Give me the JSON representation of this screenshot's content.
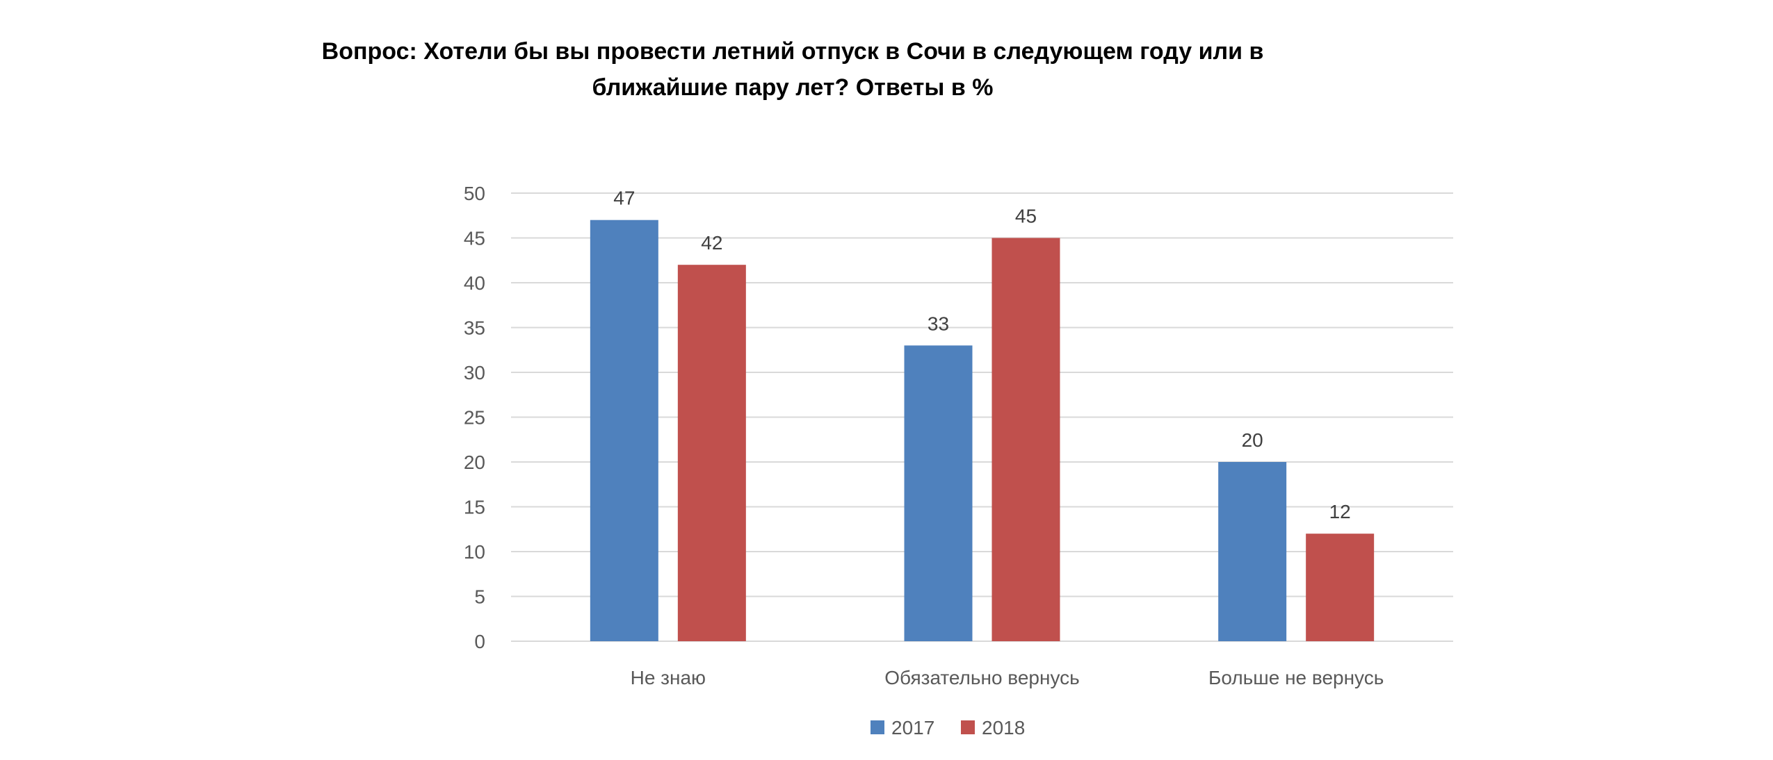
{
  "chart_data": {
    "type": "bar",
    "title": "Вопрос: Хотели бы вы провести летний отпуск в Сочи в следующем году или в ближайшие пару лет? Ответы в %",
    "categories": [
      "Не знаю",
      "Обязательно вернусь",
      "Больше не вернусь"
    ],
    "series": [
      {
        "name": "2017",
        "values": [
          47,
          33,
          20
        ],
        "color": "#4F81BD"
      },
      {
        "name": "2018",
        "values": [
          42,
          45,
          12
        ],
        "color": "#C0504D"
      }
    ],
    "xlabel": "",
    "ylabel": "",
    "ylim": [
      0,
      50
    ],
    "yticks": [
      0,
      5,
      10,
      15,
      20,
      25,
      30,
      35,
      40,
      45,
      50
    ],
    "grid": true,
    "legend": "bottom-center"
  }
}
